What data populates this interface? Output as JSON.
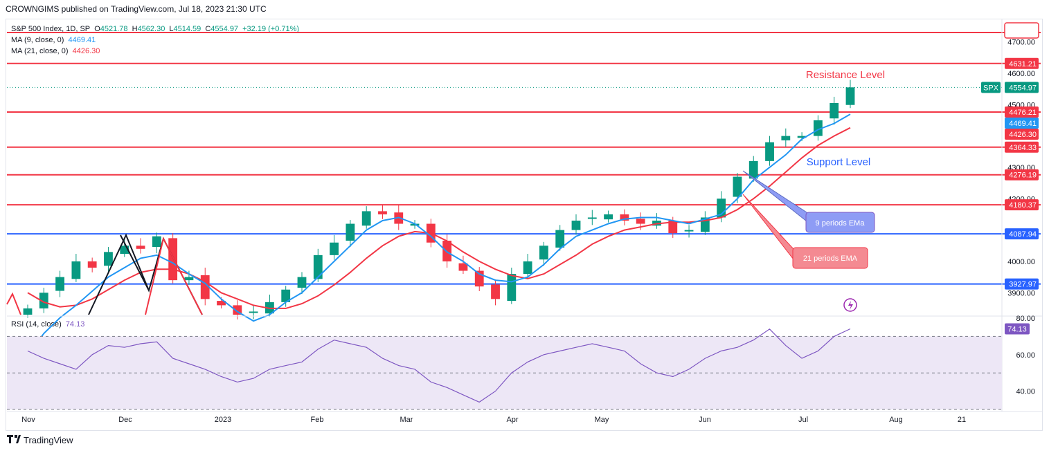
{
  "publisher": "CROWNGIMS published on TradingView.com, Jul 18, 2023 21:30 UTC",
  "main_legend": {
    "symbol": "S&P 500 Index, 1D, SP",
    "open_label": "O",
    "open": "4521.78",
    "high_label": "H",
    "high": "4562.30",
    "low_label": "L",
    "low": "4514.59",
    "close_label": "C",
    "close": "4554.97",
    "change": "+32.19 (+0.71%)"
  },
  "ma9_legend": {
    "label": "MA (9, close, 0)",
    "value": "4469.41"
  },
  "ma21_legend": {
    "label": "MA (21, close, 0)",
    "value": "4426.30"
  },
  "rsi_legend": {
    "label": "RSI (14, close)",
    "value": "74.13"
  },
  "annotations": {
    "resistance": "Resistance Level",
    "support": "Support Level",
    "ema9": "9 periods EMa",
    "ema21": "21 periods EMA"
  },
  "branding": "TradingView",
  "colors": {
    "up": "#089981",
    "down": "#f23645",
    "ma9": "#2196f3",
    "ma21": "#f23645",
    "resistance_line": "#f23645",
    "support_line": "#2962ff",
    "rsi": "#7e57c2",
    "rsi_band": "#ede7f6"
  },
  "chart_data": {
    "type": "candlestick",
    "price_axis": {
      "ticks": [
        "4700.00",
        "4600.00",
        "4500.00",
        "4300.00",
        "4200.00",
        "4000.00",
        "3900.00"
      ],
      "ylim": [
        3830,
        4730
      ]
    },
    "x_ticks": [
      "Nov",
      "Dec",
      "2023",
      "Feb",
      "Mar",
      "Apr",
      "May",
      "Jun",
      "Jul",
      "Aug",
      "21"
    ],
    "price_tags": [
      {
        "value": "4631.21",
        "color": "#f23645"
      },
      {
        "value": "4554.97",
        "color": "#089981",
        "symbol": "SPX"
      },
      {
        "value": "4476.21",
        "color": "#f23645"
      },
      {
        "value": "4469.41",
        "color": "#2196f3"
      },
      {
        "value": "4426.30",
        "color": "#f23645"
      },
      {
        "value": "4364.33",
        "color": "#f23645"
      },
      {
        "value": "4276.19",
        "color": "#f23645"
      },
      {
        "value": "4180.37",
        "color": "#f23645"
      },
      {
        "value": "4087.94",
        "color": "#2962ff"
      },
      {
        "value": "3927.97",
        "color": "#2962ff"
      }
    ],
    "horizontal_levels": [
      {
        "value": 4730,
        "color": "#f23645"
      },
      {
        "value": 4631.21,
        "color": "#f23645"
      },
      {
        "value": 4476.21,
        "color": "#f23645"
      },
      {
        "value": 4364.33,
        "color": "#f23645"
      },
      {
        "value": 4276.19,
        "color": "#f23645"
      },
      {
        "value": 4180.37,
        "color": "#f23645"
      },
      {
        "value": 4087.94,
        "color": "#2962ff"
      },
      {
        "value": 3927.97,
        "color": "#2962ff"
      }
    ],
    "ma9": [
      3700,
      3770,
      3820,
      3860,
      3905,
      3950,
      3980,
      4010,
      4020,
      3995,
      3960,
      3930,
      3880,
      3840,
      3810,
      3830,
      3870,
      3900,
      3950,
      4000,
      4050,
      4100,
      4130,
      4140,
      4120,
      4080,
      4030,
      4000,
      3960,
      3940,
      3935,
      3950,
      3990,
      4040,
      4080,
      4100,
      4120,
      4135,
      4140,
      4140,
      4130,
      4120,
      4135,
      4150,
      4200,
      4260,
      4300,
      4340,
      4390,
      4420,
      4440,
      4469.41
    ],
    "ma21": [
      3900,
      3870,
      3855,
      3860,
      3880,
      3910,
      3940,
      3965,
      3975,
      3975,
      3960,
      3935,
      3900,
      3880,
      3860,
      3850,
      3850,
      3865,
      3890,
      3925,
      3965,
      4010,
      4050,
      4080,
      4095,
      4090,
      4065,
      4030,
      4000,
      3975,
      3955,
      3945,
      3960,
      3990,
      4020,
      4055,
      4080,
      4100,
      4110,
      4120,
      4125,
      4125,
      4130,
      4140,
      4165,
      4200,
      4240,
      4285,
      4330,
      4370,
      4400,
      4426.3
    ],
    "close": [
      3850,
      3900,
      3950,
      4000,
      3980,
      4030,
      4050,
      4040,
      4080,
      3940,
      3950,
      3880,
      3860,
      3830,
      3840,
      3870,
      3910,
      3950,
      4020,
      4060,
      4120,
      4160,
      4150,
      4120,
      4120,
      4060,
      4000,
      3970,
      3920,
      3880,
      3960,
      4000,
      4050,
      4100,
      4130,
      4140,
      4150,
      4130,
      4120,
      4130,
      4090,
      4100,
      4140,
      4200,
      4270,
      4320,
      4380,
      4400,
      4400,
      4450,
      4505,
      4554.97
    ],
    "rsi": {
      "ylim": [
        30,
        80
      ],
      "bands": [
        70,
        50,
        30
      ],
      "ticks": [
        "80.00",
        "60.00",
        "40.00"
      ],
      "values": [
        62,
        58,
        55,
        52,
        60,
        65,
        64,
        66,
        67,
        58,
        55,
        52,
        48,
        45,
        47,
        52,
        54,
        56,
        63,
        68,
        66,
        64,
        58,
        54,
        52,
        45,
        42,
        38,
        34,
        40,
        50,
        56,
        60,
        62,
        64,
        66,
        64,
        62,
        55,
        50,
        48,
        52,
        58,
        62,
        64,
        68,
        74,
        65,
        58,
        62,
        70,
        74.13
      ]
    }
  }
}
